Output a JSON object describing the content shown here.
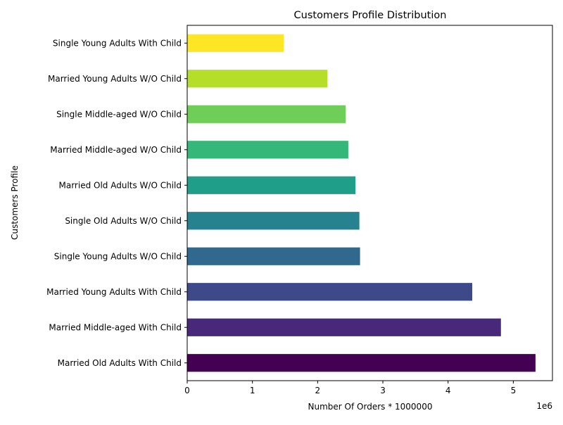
{
  "chart_data": {
    "type": "bar",
    "orientation": "horizontal",
    "title": "Customers Profile Distribution",
    "xlabel": "Number Of Orders * 1000000",
    "ylabel": "Customers Profile",
    "x_offset_label": "1e6",
    "xlim": [
      0,
      5.6
    ],
    "x_ticks": [
      "0",
      "1",
      "2",
      "3",
      "4",
      "5"
    ],
    "grid": false,
    "legend": "none",
    "categories": [
      "Married Old Adults With Child",
      "Married Middle-aged With Child",
      "Married Young Adults With Child",
      "Single Young Adults W/O Child",
      "Single Old Adults W/O Child",
      "Married Old Adults W/O Child",
      "Married Middle-aged W/O Child",
      "Single Middle-aged W/O Child",
      "Married Young Adults W/O Child",
      "Single Young Adults With Child"
    ],
    "values": [
      5.34,
      4.81,
      4.37,
      2.65,
      2.64,
      2.58,
      2.47,
      2.43,
      2.15,
      1.48
    ],
    "colors": [
      "#440154",
      "#482878",
      "#3e4989",
      "#31688e",
      "#26828e",
      "#1f9e89",
      "#35b779",
      "#6ece58",
      "#b5de2b",
      "#fde725"
    ]
  }
}
